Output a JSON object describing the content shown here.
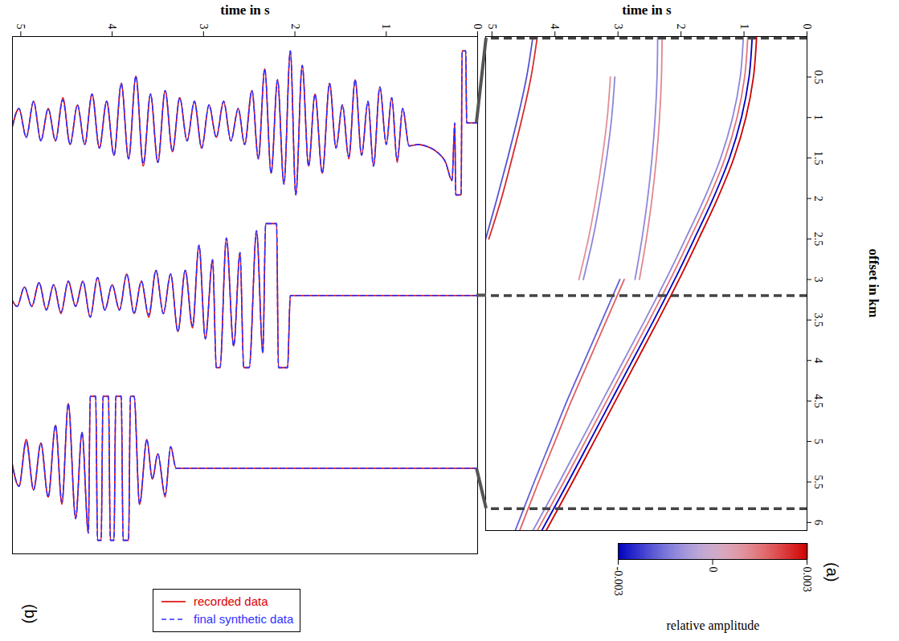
{
  "chart_data": [
    {
      "type": "seismic_gather",
      "label": "(a)",
      "xlabel": "offset in km",
      "ylabel": "time in s",
      "xlim": [
        0,
        6.1
      ],
      "xticks": [
        0.5,
        1,
        1.5,
        2,
        2.5,
        3,
        3.5,
        4,
        4.5,
        5,
        5.5,
        6
      ],
      "ylim": [
        0,
        5.1
      ],
      "yticks": [
        0,
        1,
        2,
        3,
        4,
        5
      ],
      "colorbar": {
        "label": "relative amplitude",
        "range": [
          -0.003,
          0.003
        ],
        "ticks": [
          -0.003,
          0,
          0.003
        ]
      },
      "events": [
        {
          "amplitude": 0.003,
          "offset": [
            0,
            0.5,
            1,
            1.5,
            2,
            2.5,
            3,
            3.5,
            4,
            4.5,
            5,
            5.5,
            6.1
          ],
          "time": [
            0.8,
            0.85,
            0.97,
            1.16,
            1.42,
            1.72,
            2.03,
            2.36,
            2.7,
            3.04,
            3.38,
            3.72,
            4.14
          ]
        },
        {
          "amplitude": -0.003,
          "offset": [
            0,
            0.5,
            1,
            1.5,
            2,
            2.5,
            3,
            3.5,
            4,
            4.5,
            5,
            5.5,
            6.1
          ],
          "time": [
            0.87,
            0.92,
            1.04,
            1.23,
            1.49,
            1.79,
            2.1,
            2.43,
            2.77,
            3.11,
            3.45,
            3.79,
            4.21
          ]
        },
        {
          "amplitude": 0.0015,
          "offset": [
            0,
            0.5,
            1,
            1.5,
            2,
            2.5,
            3,
            3.5,
            4,
            4.5,
            5,
            5.5,
            6.1
          ],
          "time": [
            0.94,
            0.99,
            1.11,
            1.3,
            1.56,
            1.86,
            2.17,
            2.5,
            2.84,
            3.18,
            3.52,
            3.86,
            4.28
          ]
        },
        {
          "amplitude": -0.0012,
          "offset": [
            0,
            0.5,
            1,
            1.5,
            2,
            2.5,
            3,
            3.5,
            4,
            4.5,
            5,
            5.5,
            6.1
          ],
          "time": [
            1.01,
            1.06,
            1.18,
            1.37,
            1.63,
            1.93,
            2.24,
            2.57,
            2.91,
            3.25,
            3.59,
            3.93,
            4.35
          ]
        },
        {
          "amplitude": 0.0012,
          "offset": [
            0,
            0.5,
            1,
            1.5,
            2,
            2.5,
            3
          ],
          "time": [
            2.3,
            2.31,
            2.34,
            2.39,
            2.46,
            2.55,
            2.66
          ]
        },
        {
          "amplitude": -0.0012,
          "offset": [
            0,
            0.5,
            1,
            1.5,
            2,
            2.5,
            3
          ],
          "time": [
            2.37,
            2.38,
            2.41,
            2.46,
            2.53,
            2.62,
            2.73
          ]
        },
        {
          "amplitude": 0.0025,
          "offset": [
            0,
            0.5,
            1,
            1.5,
            2,
            2.5
          ],
          "time": [
            4.28,
            4.38,
            4.52,
            4.68,
            4.85,
            5.05
          ]
        },
        {
          "amplitude": -0.002,
          "offset": [
            0,
            0.5,
            1,
            1.5,
            2,
            2.5
          ],
          "time": [
            4.35,
            4.45,
            4.59,
            4.75,
            4.92,
            5.1
          ]
        },
        {
          "amplitude": 0.0018,
          "offset": [
            3,
            3.5,
            4,
            4.5,
            5,
            5.5,
            6.1
          ],
          "time": [
            2.9,
            3.18,
            3.46,
            3.74,
            4.0,
            4.26,
            4.56
          ]
        },
        {
          "amplitude": -0.0018,
          "offset": [
            3,
            3.5,
            4,
            4.5,
            5,
            5.5,
            6.1
          ],
          "time": [
            2.97,
            3.25,
            3.53,
            3.81,
            4.07,
            4.33,
            4.63
          ]
        },
        {
          "amplitude": -0.0012,
          "offset": [
            0.5,
            1,
            1.5,
            2,
            2.5,
            3
          ],
          "time": [
            3.05,
            3.1,
            3.18,
            3.28,
            3.4,
            3.55
          ]
        },
        {
          "amplitude": 0.001,
          "offset": [
            0.5,
            1,
            1.5,
            2,
            2.5,
            3
          ],
          "time": [
            3.12,
            3.17,
            3.25,
            3.35,
            3.47,
            3.62
          ]
        }
      ]
    },
    {
      "type": "wiggle",
      "label": "(b)",
      "ylabel": "time in s",
      "ylim": [
        0,
        5.1
      ],
      "yticks": [
        0,
        1,
        2,
        3,
        4,
        5
      ],
      "xlim": [
        -1.2,
        1.2
      ],
      "tick_labels": "y",
      "legend": "bottom",
      "series": [
        {
          "name": "recorded data",
          "color": "#e00000",
          "line_style": "solid"
        },
        {
          "name": "final synthetic data",
          "color": "#3030ff",
          "line_style": "dashed"
        }
      ],
      "traces": [
        {
          "offset": 0.02,
          "time": [
            0,
            0.12,
            0.13,
            0.17,
            0.18,
            0.24,
            0.25,
            0.28,
            0.35,
            0.45,
            0.55,
            0.65,
            0.75,
            0.82,
            0.88,
            0.94,
            1.0,
            1.07,
            1.14,
            1.2,
            1.27,
            1.34,
            1.41,
            1.48,
            1.55,
            1.62,
            1.7,
            1.78,
            1.85,
            1.92,
            1.99,
            2.05,
            2.12,
            2.19,
            2.26,
            2.33,
            2.4,
            2.47,
            2.55,
            2.62,
            2.7,
            2.78,
            2.86,
            2.94,
            3.02,
            3.1,
            3.18,
            3.26,
            3.34,
            3.42,
            3.5,
            3.58,
            3.66,
            3.74,
            3.82,
            3.9,
            3.98,
            4.06,
            4.14,
            4.22,
            4.3,
            4.38,
            4.46,
            4.54,
            4.62,
            4.7,
            4.78,
            4.86,
            4.94,
            5.02,
            5.1
          ],
          "values": [
            [
              0,
              0,
              -1,
              -1,
              1,
              1,
              0,
              0.8,
              0.55,
              0.4,
              0.33,
              0.3,
              0.32,
              -0.2,
              0.55,
              -0.35,
              0.3,
              -0.5,
              0.6,
              -0.3,
              0.45,
              -0.6,
              0.5,
              -0.25,
              0.35,
              -0.55,
              0.7,
              -0.4,
              0.6,
              -0.8,
              1,
              -1,
              0.85,
              -0.6,
              0.7,
              -0.75,
              0.5,
              -0.45,
              0.3,
              -0.2,
              0.25,
              -0.3,
              0.2,
              -0.25,
              0.35,
              -0.3,
              0.25,
              -0.35,
              0.4,
              -0.45,
              0.55,
              -0.4,
              0.6,
              -0.65,
              0.5,
              -0.55,
              0.45,
              -0.3,
              0.35,
              -0.4,
              0.3,
              -0.25,
              0.3,
              -0.35,
              0.25,
              -0.2,
              0.25,
              -0.3,
              0.2,
              -0.2,
              0.1
            ],
            [
              0,
              0,
              -1,
              -1,
              1,
              1,
              0,
              0.8,
              0.55,
              0.4,
              0.33,
              0.3,
              0.32,
              -0.2,
              0.52,
              -0.35,
              0.3,
              -0.5,
              0.6,
              -0.3,
              0.45,
              -0.6,
              0.47,
              -0.25,
              0.35,
              -0.55,
              0.7,
              -0.4,
              0.6,
              -0.8,
              1,
              -1,
              0.85,
              -0.6,
              0.7,
              -0.75,
              0.5,
              -0.45,
              0.3,
              -0.2,
              0.25,
              -0.3,
              0.2,
              -0.25,
              0.35,
              -0.3,
              0.25,
              -0.35,
              0.4,
              -0.45,
              0.55,
              -0.4,
              0.57,
              -0.65,
              0.5,
              -0.55,
              0.45,
              -0.3,
              0.35,
              -0.4,
              0.3,
              -0.25,
              0.3,
              -0.32,
              0.25,
              -0.2,
              0.25,
              -0.3,
              0.2,
              -0.2,
              0.1
            ]
          ]
        },
        {
          "offset": 3.2,
          "time": [
            0,
            2.05,
            2.08,
            2.18,
            2.2,
            2.32,
            2.35,
            2.42,
            2.5,
            2.56,
            2.6,
            2.67,
            2.75,
            2.82,
            2.86,
            2.9,
            2.98,
            3.05,
            3.12,
            3.2,
            3.28,
            3.36,
            3.44,
            3.52,
            3.6,
            3.68,
            3.76,
            3.84,
            3.92,
            4.0,
            4.08,
            4.16,
            4.24,
            4.32,
            4.4,
            4.48,
            4.56,
            4.64,
            4.72,
            4.8,
            4.88,
            4.96,
            5.04,
            5.1
          ],
          "values": [
            [
              0,
              0,
              1,
              1,
              -1,
              -1,
              0.8,
              -0.9,
              1,
              1,
              -0.6,
              0.7,
              -0.8,
              1,
              1,
              -0.5,
              0.6,
              -0.7,
              0.45,
              -0.35,
              0.5,
              -0.3,
              0.25,
              -0.35,
              0.3,
              -0.2,
              0.25,
              -0.3,
              0.2,
              -0.15,
              0.2,
              -0.25,
              0.3,
              -0.2,
              0.15,
              -0.2,
              0.25,
              -0.15,
              0.2,
              -0.18,
              0.15,
              -0.12,
              0.15,
              0.05
            ],
            [
              0,
              0,
              1,
              1,
              -1,
              -1,
              0.8,
              -0.9,
              1,
              1,
              -0.6,
              0.7,
              -0.8,
              1,
              1,
              -0.5,
              0.6,
              -0.7,
              0.42,
              -0.35,
              0.5,
              -0.3,
              0.25,
              -0.35,
              0.27,
              -0.2,
              0.25,
              -0.3,
              0.2,
              -0.15,
              0.2,
              -0.25,
              0.3,
              -0.2,
              0.15,
              -0.2,
              0.23,
              -0.15,
              0.2,
              -0.18,
              0.15,
              -0.12,
              0.15,
              0.05
            ]
          ]
        },
        {
          "offset": 5.83,
          "time": [
            0,
            3.3,
            3.36,
            3.42,
            3.5,
            3.56,
            3.62,
            3.7,
            3.76,
            3.8,
            3.82,
            3.88,
            3.9,
            3.96,
            3.98,
            4.02,
            4.04,
            4.1,
            4.12,
            4.16,
            4.18,
            4.24,
            4.26,
            4.33,
            4.4,
            4.48,
            4.55,
            4.62,
            4.7,
            4.78,
            4.86,
            4.94,
            5.02,
            5.1
          ],
          "values": [
            [
              0,
              0,
              -0.3,
              0.4,
              -0.2,
              0.15,
              -0.4,
              0.5,
              -1,
              -1,
              1,
              1,
              -1,
              -1,
              1,
              1,
              -1,
              -1,
              1,
              1,
              -1,
              -1,
              0.9,
              -0.5,
              0.7,
              -0.9,
              0.5,
              -0.6,
              0.4,
              -0.35,
              0.3,
              -0.4,
              0.25,
              -0.1
            ],
            [
              0,
              0,
              -0.3,
              0.37,
              -0.2,
              0.15,
              -0.4,
              0.5,
              -1,
              -1,
              1,
              1,
              -1,
              -1,
              1,
              1,
              -1,
              -1,
              1,
              1,
              -1,
              -1,
              0.9,
              -0.5,
              0.7,
              -0.9,
              0.47,
              -0.6,
              0.4,
              -0.35,
              0.3,
              -0.37,
              0.25,
              -0.1
            ]
          ]
        }
      ]
    }
  ]
}
